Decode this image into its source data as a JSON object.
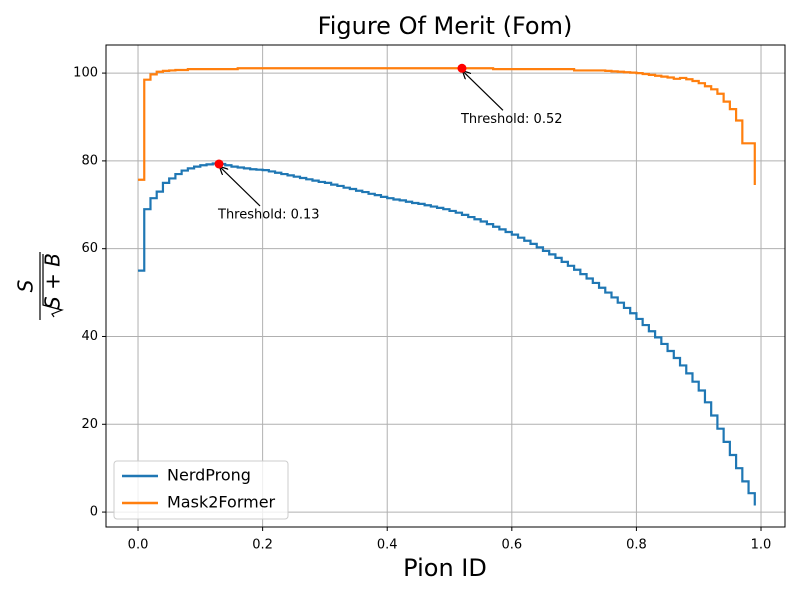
{
  "chart_data": {
    "type": "step",
    "title": "Figure Of Merit (Fom)",
    "xlabel": "Pion ID",
    "ylabel": {
      "numerator": "S",
      "denominator": "S + B"
    },
    "x": [
      0.0,
      0.01,
      0.02,
      0.03,
      0.04,
      0.05,
      0.06,
      0.07,
      0.08,
      0.09,
      0.1,
      0.11,
      0.12,
      0.13,
      0.14,
      0.15,
      0.16,
      0.17,
      0.18,
      0.19,
      0.2,
      0.21,
      0.22,
      0.23,
      0.24,
      0.25,
      0.26,
      0.27,
      0.28,
      0.29,
      0.3,
      0.31,
      0.32,
      0.33,
      0.34,
      0.35,
      0.36,
      0.37,
      0.38,
      0.39,
      0.4,
      0.41,
      0.42,
      0.43,
      0.44,
      0.45,
      0.46,
      0.47,
      0.48,
      0.49,
      0.5,
      0.51,
      0.52,
      0.53,
      0.54,
      0.55,
      0.56,
      0.57,
      0.58,
      0.59,
      0.6,
      0.61,
      0.62,
      0.63,
      0.64,
      0.65,
      0.66,
      0.67,
      0.68,
      0.69,
      0.7,
      0.71,
      0.72,
      0.73,
      0.74,
      0.75,
      0.76,
      0.77,
      0.78,
      0.79,
      0.8,
      0.81,
      0.82,
      0.83,
      0.84,
      0.85,
      0.86,
      0.87,
      0.88,
      0.89,
      0.9,
      0.91,
      0.92,
      0.93,
      0.94,
      0.95,
      0.96,
      0.97,
      0.98,
      0.99
    ],
    "series": [
      {
        "name": "NerdProng",
        "color": "#1f77b4",
        "values": [
          55,
          69,
          71.5,
          73,
          75,
          76,
          77,
          77.8,
          78.3,
          78.7,
          79,
          79.2,
          79.4,
          79.3,
          79.0,
          78.7,
          78.5,
          78.3,
          78.1,
          78.0,
          77.9,
          77.6,
          77.3,
          77.0,
          76.7,
          76.4,
          76.1,
          75.8,
          75.5,
          75.2,
          75.0,
          74.6,
          74.3,
          73.9,
          73.6,
          73.2,
          72.9,
          72.5,
          72.2,
          71.8,
          71.5,
          71.2,
          71.0,
          70.7,
          70.4,
          70.2,
          69.9,
          69.6,
          69.3,
          69.0,
          68.6,
          68.2,
          67.7,
          67.2,
          66.7,
          66.2,
          65.6,
          65.0,
          64.4,
          63.8,
          63.2,
          62.5,
          61.8,
          61.1,
          60.3,
          59.5,
          58.7,
          57.9,
          57.0,
          56.1,
          55.2,
          54.2,
          53.2,
          52.2,
          51.1,
          50.0,
          48.9,
          47.7,
          46.5,
          45.3,
          44.0,
          42.6,
          41.2,
          39.8,
          38.3,
          36.7,
          35.1,
          33.4,
          31.6,
          29.7,
          27.7,
          25,
          22,
          19,
          16,
          13,
          10,
          7,
          4.3,
          1.5
        ]
      },
      {
        "name": "Mask2Former",
        "color": "#ff7f0e",
        "values": [
          75.7,
          98.5,
          99.7,
          100.3,
          100.5,
          100.6,
          100.7,
          100.7,
          100.9,
          100.9,
          100.9,
          100.9,
          100.9,
          100.9,
          100.9,
          100.9,
          101.1,
          101.1,
          101.1,
          101.1,
          101.1,
          101.1,
          101.1,
          101.1,
          101.1,
          101.1,
          101.1,
          101.1,
          101.1,
          101.1,
          101.1,
          101.1,
          101.1,
          101.1,
          101.1,
          101.1,
          101.1,
          101.1,
          101.1,
          101.1,
          101.1,
          101.1,
          101.1,
          101.1,
          101.1,
          101.1,
          101.1,
          101.1,
          101.1,
          101.1,
          101.1,
          101.1,
          101.1,
          101.1,
          101.1,
          101.1,
          101.1,
          100.9,
          100.9,
          100.9,
          100.9,
          100.9,
          100.9,
          100.9,
          100.9,
          100.9,
          100.9,
          100.9,
          100.9,
          100.9,
          100.6,
          100.6,
          100.6,
          100.6,
          100.6,
          100.5,
          100.4,
          100.3,
          100.2,
          100.1,
          100.0,
          99.8,
          99.6,
          99.4,
          99.2,
          99.0,
          98.7,
          98.9,
          98.6,
          98.2,
          97.7,
          97.0,
          96.3,
          95.3,
          93.5,
          91.8,
          89.2,
          84.0,
          84.0,
          74.5
        ]
      }
    ],
    "points": [
      {
        "x": 0.13,
        "y": 79.3,
        "label": "Threshold: 0.13",
        "color": "#ff0000"
      },
      {
        "x": 0.52,
        "y": 101.1,
        "label": "Threshold: 0.52",
        "color": "#ff0000"
      }
    ],
    "xlim": [
      -0.0514,
      1.0385
    ],
    "ylim": [
      -3.4,
      106.4
    ],
    "xticks": [
      {
        "value": 0.0,
        "label": "0.0"
      },
      {
        "value": 0.2,
        "label": "0.2"
      },
      {
        "value": 0.4,
        "label": "0.4"
      },
      {
        "value": 0.6,
        "label": "0.6"
      },
      {
        "value": 0.8,
        "label": "0.8"
      },
      {
        "value": 1.0,
        "label": "1.0"
      }
    ],
    "yticks": [
      0,
      20,
      40,
      60,
      80,
      100
    ],
    "grid": true,
    "legend": "lower left"
  }
}
